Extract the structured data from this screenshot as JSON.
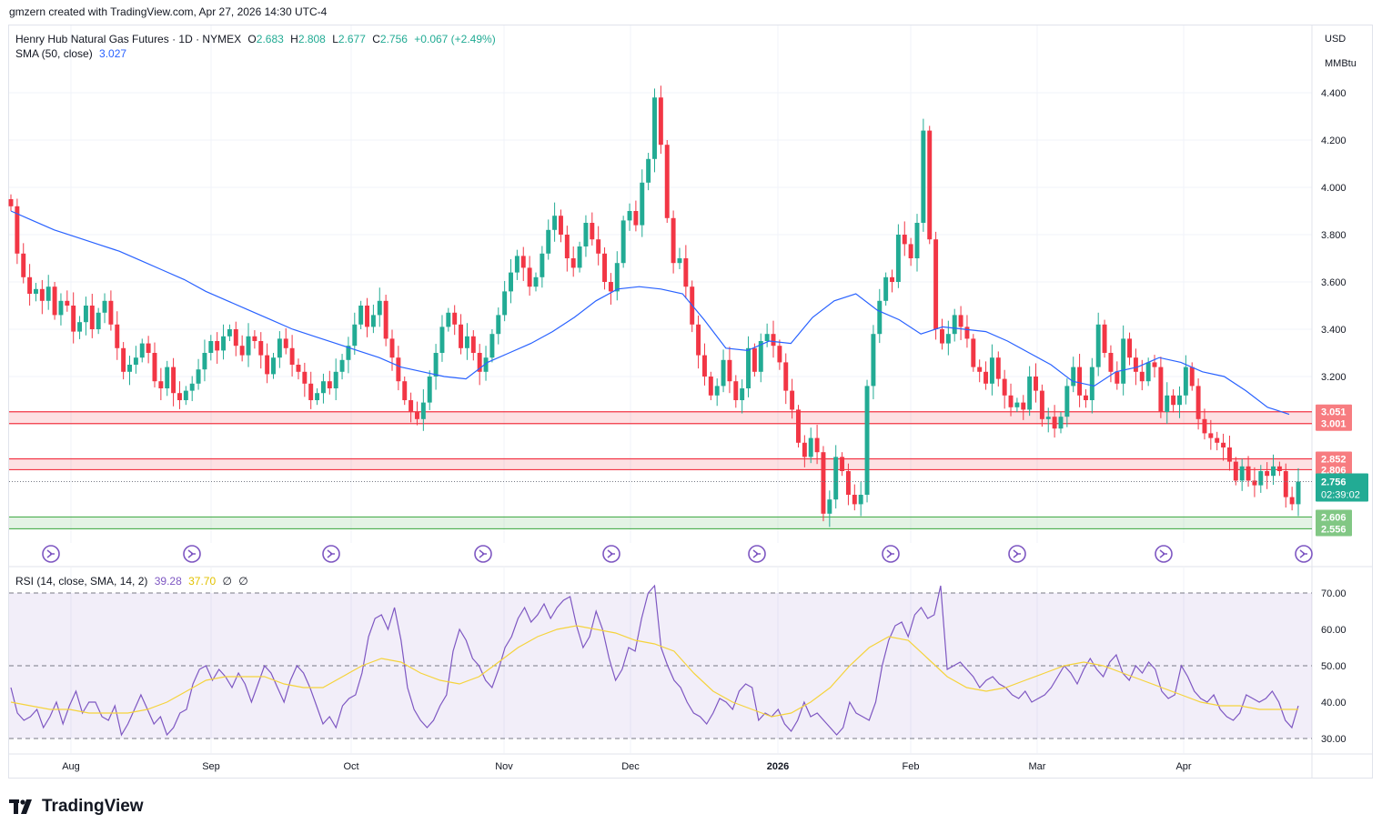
{
  "header": {
    "credit": "gmzern created with TradingView.com, Apr 27, 2026 14:30 UTC-4"
  },
  "legend": {
    "symbol": "Henry Hub Natural Gas Futures · 1D · NYMEX",
    "open_label": "O",
    "open": "2.683",
    "high_label": "H",
    "high": "2.808",
    "low_label": "L",
    "low": "2.677",
    "close_label": "C",
    "close": "2.756",
    "change": "+0.067 (+2.49%)",
    "sma_label": "SMA (50, close)",
    "sma_value": "3.027",
    "rsi_label": "RSI (14, close, SMA, 14, 2)",
    "rsi_value": "39.28",
    "rsi_sma_value": "37.70",
    "rsi_extra1": "∅",
    "rsi_extra2": "∅"
  },
  "axis": {
    "currency": "USD",
    "unit": "MMBtu"
  },
  "footer": {
    "brand": "TradingView"
  },
  "colors": {
    "up": "#22ab94",
    "down": "#f23645",
    "sma": "#2962ff",
    "rsi": "#7e57c2",
    "rsi_sma": "#f5d33c",
    "resistance": "#f23645",
    "support": "#4caf50"
  },
  "chart_data": {
    "type": "candlestick",
    "price_axis": {
      "ticks": [
        4.4,
        4.2,
        4.0,
        3.8,
        3.6,
        3.4,
        3.2,
        3.0
      ],
      "tick_labels": [
        "4.400",
        "4.200",
        "4.000",
        "3.800",
        "3.600",
        "3.400",
        "3.200",
        "3.000"
      ]
    },
    "time_axis": [
      "Aug",
      "Sep",
      "Oct",
      "Nov",
      "Dec",
      "2026",
      "Feb",
      "Mar",
      "Apr"
    ],
    "zones": [
      {
        "kind": "resistance",
        "high": 3.051,
        "low": 3.001,
        "labels": [
          "3.051",
          "3.001"
        ]
      },
      {
        "kind": "resistance",
        "high": 2.852,
        "low": 2.806,
        "labels": [
          "2.852",
          "2.806"
        ]
      },
      {
        "kind": "support",
        "high": 2.606,
        "low": 2.556,
        "labels": [
          "2.606",
          "2.556"
        ]
      }
    ],
    "last_price": {
      "value": "2.756",
      "countdown": "02:39:02"
    },
    "closes": [
      3.92,
      3.72,
      3.62,
      3.55,
      3.57,
      3.52,
      3.58,
      3.46,
      3.52,
      3.5,
      3.39,
      3.43,
      3.5,
      3.4,
      3.47,
      3.52,
      3.42,
      3.32,
      3.22,
      3.25,
      3.28,
      3.34,
      3.3,
      3.18,
      3.15,
      3.24,
      3.13,
      3.1,
      3.14,
      3.17,
      3.23,
      3.3,
      3.35,
      3.31,
      3.37,
      3.4,
      3.33,
      3.29,
      3.37,
      3.35,
      3.29,
      3.21,
      3.28,
      3.36,
      3.32,
      3.25,
      3.22,
      3.17,
      3.1,
      3.13,
      3.18,
      3.15,
      3.22,
      3.27,
      3.33,
      3.42,
      3.5,
      3.41,
      3.46,
      3.52,
      3.36,
      3.28,
      3.18,
      3.1,
      3.05,
      3.02,
      3.09,
      3.2,
      3.3,
      3.41,
      3.47,
      3.42,
      3.32,
      3.37,
      3.3,
      3.22,
      3.28,
      3.38,
      3.46,
      3.56,
      3.64,
      3.71,
      3.66,
      3.58,
      3.62,
      3.72,
      3.82,
      3.88,
      3.8,
      3.7,
      3.66,
      3.75,
      3.85,
      3.78,
      3.72,
      3.6,
      3.56,
      3.68,
      3.86,
      3.9,
      3.84,
      4.02,
      4.12,
      4.38,
      4.18,
      3.87,
      3.68,
      3.7,
      3.58,
      3.42,
      3.29,
      3.2,
      3.12,
      3.16,
      3.27,
      3.18,
      3.1,
      3.15,
      3.32,
      3.22,
      3.35,
      3.38,
      3.33,
      3.26,
      3.14,
      3.06,
      2.92,
      2.86,
      2.94,
      2.88,
      2.62,
      2.68,
      2.86,
      2.8,
      2.7,
      2.66,
      2.7,
      3.16,
      3.38,
      3.52,
      3.62,
      3.6,
      3.8,
      3.76,
      3.7,
      3.85,
      4.24,
      3.78,
      3.4,
      3.34,
      3.38,
      3.46,
      3.41,
      3.36,
      3.24,
      3.22,
      3.17,
      3.28,
      3.19,
      3.12,
      3.07,
      3.09,
      3.06,
      3.2,
      3.14,
      3.02,
      3.03,
      2.98,
      3.03,
      3.16,
      3.24,
      3.12,
      3.1,
      3.24,
      3.42,
      3.3,
      3.22,
      3.17,
      3.36,
      3.28,
      3.22,
      3.18,
      3.26,
      3.24,
      3.05,
      3.12,
      3.08,
      3.12,
      3.24,
      3.16,
      3.02,
      2.96,
      2.94,
      2.92,
      2.9,
      2.84,
      2.76,
      2.82,
      2.76,
      2.74,
      2.8,
      2.78,
      2.82,
      2.8,
      2.69,
      2.66,
      2.756
    ],
    "sma50": [
      3.9,
      3.86,
      3.82,
      3.79,
      3.76,
      3.73,
      3.69,
      3.65,
      3.61,
      3.56,
      3.52,
      3.48,
      3.44,
      3.4,
      3.37,
      3.34,
      3.31,
      3.28,
      3.24,
      3.22,
      3.2,
      3.19,
      3.26,
      3.3,
      3.34,
      3.39,
      3.45,
      3.52,
      3.57,
      3.58,
      3.57,
      3.55,
      3.44,
      3.32,
      3.31,
      3.35,
      3.34,
      3.45,
      3.52,
      3.55,
      3.48,
      3.44,
      3.38,
      3.41,
      3.4,
      3.39,
      3.35,
      3.3,
      3.25,
      3.18,
      3.16,
      3.22,
      3.24,
      3.28,
      3.26,
      3.22,
      3.2,
      3.14,
      3.07,
      3.04
    ],
    "rsi": [
      44,
      37,
      35,
      36,
      38,
      33,
      36,
      40,
      34,
      39,
      43,
      37,
      40,
      40,
      36,
      35,
      39,
      31,
      34,
      38,
      42,
      38,
      34,
      36,
      31,
      33,
      37,
      38,
      45,
      49,
      50,
      46,
      49,
      47,
      44,
      48,
      45,
      40,
      45,
      50,
      48,
      44,
      40,
      46,
      50,
      48,
      44,
      39,
      34,
      36,
      33,
      39,
      41,
      42,
      48,
      58,
      63,
      64,
      60,
      66,
      57,
      44,
      38,
      35,
      33,
      35,
      39,
      42,
      54,
      60,
      57,
      52,
      50,
      46,
      44,
      49,
      55,
      58,
      63,
      66,
      62,
      64,
      67,
      63,
      66,
      68,
      69,
      61,
      55,
      58,
      65,
      60,
      52,
      46,
      49,
      55,
      54,
      63,
      70,
      72,
      55,
      50,
      46,
      44,
      40,
      37,
      36,
      34,
      37,
      41,
      40,
      38,
      43,
      45,
      44,
      35,
      37,
      36,
      38,
      34,
      32,
      35,
      40,
      36,
      37,
      35,
      33,
      31,
      33,
      40,
      37,
      36,
      35,
      40,
      50,
      57,
      61,
      62,
      58,
      64,
      66,
      63,
      64,
      72,
      49,
      50,
      51,
      49,
      47,
      44,
      46,
      47,
      45,
      44,
      42,
      41,
      43,
      40,
      41,
      42,
      44,
      47,
      50,
      48,
      45,
      49,
      52,
      49,
      47,
      51,
      53,
      48,
      46,
      50,
      48,
      51,
      49,
      43,
      41,
      42,
      50,
      47,
      43,
      41,
      40,
      42,
      38,
      36,
      35,
      37,
      42,
      41,
      40,
      41,
      43,
      40,
      35,
      33,
      39
    ],
    "rsi_sma": [
      40,
      39,
      38,
      38,
      37,
      37,
      37,
      38,
      40,
      43,
      46,
      47,
      47,
      47,
      45,
      44,
      44,
      47,
      50,
      52,
      51,
      48,
      46,
      45,
      47,
      51,
      55,
      58,
      60,
      61,
      60,
      59,
      57,
      56,
      54,
      48,
      43,
      40,
      38,
      36,
      37,
      40,
      44,
      50,
      55,
      58,
      57,
      52,
      47,
      44,
      43,
      44,
      46,
      48,
      50,
      51,
      50,
      48,
      46,
      44,
      42,
      40,
      39,
      39,
      38,
      38,
      38
    ],
    "rsi_levels": [
      70,
      50,
      30
    ],
    "rsi_axis_labels": [
      "70.00",
      "60.00",
      "50.00",
      "40.00",
      "30.00"
    ]
  }
}
